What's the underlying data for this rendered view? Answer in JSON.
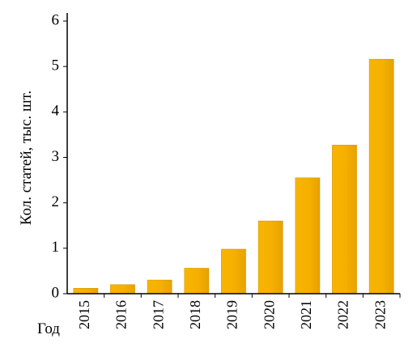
{
  "chart_data": {
    "type": "bar",
    "categories": [
      "2015",
      "2016",
      "2017",
      "2018",
      "2019",
      "2020",
      "2021",
      "2022",
      "2023"
    ],
    "values": [
      0.12,
      0.2,
      0.3,
      0.56,
      0.98,
      1.6,
      2.55,
      3.27,
      5.16
    ],
    "title": "",
    "xlabel": "Год",
    "ylabel": "Кол. статей, тыс. шт.",
    "ylim": [
      0,
      6
    ],
    "yticks": [
      "0",
      "1",
      "2",
      "3",
      "4",
      "5",
      "6"
    ],
    "grid": false,
    "bar_color": "#f5b000",
    "bar_edge_color": "#d89400"
  }
}
